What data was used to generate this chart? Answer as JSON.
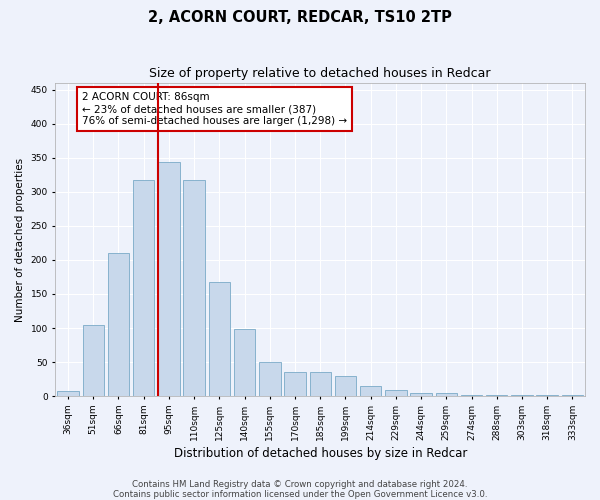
{
  "title": "2, ACORN COURT, REDCAR, TS10 2TP",
  "subtitle": "Size of property relative to detached houses in Redcar",
  "xlabel": "Distribution of detached houses by size in Redcar",
  "ylabel": "Number of detached properties",
  "categories": [
    "36sqm",
    "51sqm",
    "66sqm",
    "81sqm",
    "95sqm",
    "110sqm",
    "125sqm",
    "140sqm",
    "155sqm",
    "170sqm",
    "185sqm",
    "199sqm",
    "214sqm",
    "229sqm",
    "244sqm",
    "259sqm",
    "274sqm",
    "288sqm",
    "303sqm",
    "318sqm",
    "333sqm"
  ],
  "values": [
    7,
    105,
    210,
    318,
    344,
    318,
    168,
    98,
    50,
    36,
    36,
    29,
    15,
    9,
    5,
    4,
    2,
    1,
    1,
    1,
    1
  ],
  "bar_color": "#c8d8eb",
  "bar_edge_color": "#7aaac8",
  "annotation_text": "2 ACORN COURT: 86sqm\n← 23% of detached houses are smaller (387)\n76% of semi-detached houses are larger (1,298) →",
  "annotation_box_color": "#ffffff",
  "annotation_box_edge_color": "#cc0000",
  "red_line_color": "#cc0000",
  "ylim": [
    0,
    460
  ],
  "yticks": [
    0,
    50,
    100,
    150,
    200,
    250,
    300,
    350,
    400,
    450
  ],
  "background_color": "#eef2fb",
  "grid_color": "#ffffff",
  "footer_line1": "Contains HM Land Registry data © Crown copyright and database right 2024.",
  "footer_line2": "Contains public sector information licensed under the Open Government Licence v3.0.",
  "title_fontsize": 10.5,
  "subtitle_fontsize": 9,
  "xlabel_fontsize": 8.5,
  "ylabel_fontsize": 7.5,
  "tick_fontsize": 6.5,
  "annotation_fontsize": 7.5,
  "footer_fontsize": 6.2
}
